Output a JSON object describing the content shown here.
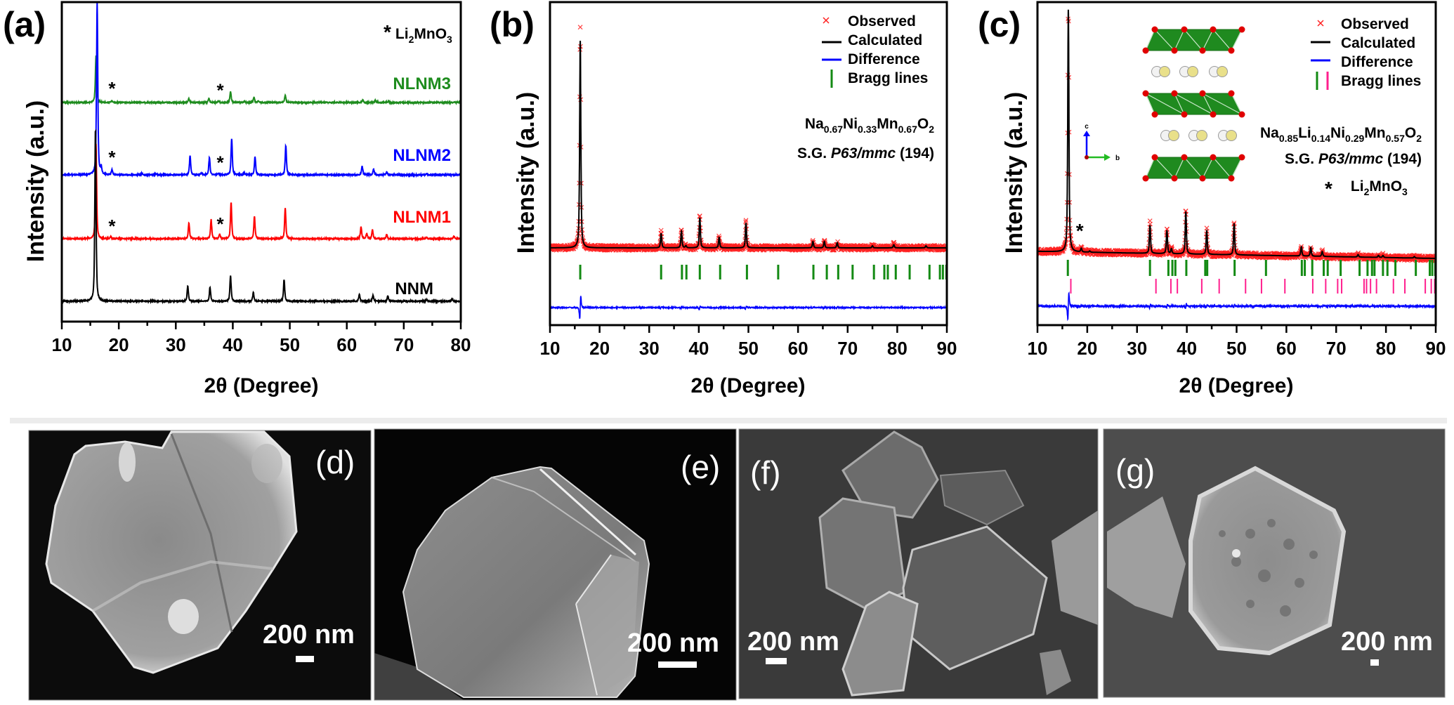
{
  "chart_data": [
    {
      "type": "line",
      "panel_label": "(a)",
      "xlabel": "2θ (Degree)",
      "ylabel": "Intensity (a.u.)",
      "xlim": [
        10,
        80
      ],
      "xticks": [
        10,
        20,
        30,
        40,
        50,
        60,
        70,
        80
      ],
      "grid": false,
      "stacked": true,
      "impurity_legend": {
        "symbol": "*",
        "parts": [
          "Li",
          "2",
          "MnO",
          "3"
        ]
      },
      "series": [
        {
          "name": "NLNM3",
          "color": "#1e8c1e",
          "impurity_peaks": [
            18.8,
            37.8
          ],
          "peaks": [
            [
              16.0,
              27
            ],
            [
              18.8,
              1.2
            ],
            [
              32.3,
              2.4
            ],
            [
              35.8,
              2.4
            ],
            [
              37.5,
              0.8
            ],
            [
              39.6,
              6.5
            ],
            [
              42.0,
              0.8
            ],
            [
              43.7,
              3.2
            ],
            [
              44.5,
              1.0
            ],
            [
              49.2,
              4.5
            ],
            [
              62.8,
              1.6
            ],
            [
              65.0,
              1.2
            ],
            [
              67.3,
              0.8
            ]
          ]
        },
        {
          "name": "NLNM2",
          "color": "#0000ff",
          "impurity_peaks": [
            18.8,
            37.8
          ],
          "peaks": [
            [
              16.2,
              100
            ],
            [
              16.9,
              4
            ],
            [
              18.8,
              3
            ],
            [
              24.0,
              0.8
            ],
            [
              26.5,
              0.5
            ],
            [
              32.5,
              11
            ],
            [
              34.5,
              1.2
            ],
            [
              35.9,
              10
            ],
            [
              37.5,
              0.8
            ],
            [
              39.8,
              21
            ],
            [
              42.0,
              1
            ],
            [
              43.9,
              10.5
            ],
            [
              49.3,
              17
            ],
            [
              62.7,
              5
            ],
            [
              64.7,
              3.2
            ],
            [
              67.0,
              1.6
            ],
            [
              74.0,
              0.6
            ]
          ]
        },
        {
          "name": "NLNM1",
          "color": "#ff0000",
          "impurity_peaks": [
            18.8,
            37.8
          ],
          "peaks": [
            [
              16.0,
              55
            ],
            [
              18.6,
              1.2
            ],
            [
              32.3,
              9
            ],
            [
              36.2,
              11
            ],
            [
              37.7,
              2.5
            ],
            [
              39.7,
              21
            ],
            [
              43.8,
              13
            ],
            [
              49.2,
              18
            ],
            [
              62.5,
              7
            ],
            [
              63.5,
              3
            ],
            [
              64.5,
              5
            ],
            [
              67.0,
              2.5
            ],
            [
              74.0,
              1
            ],
            [
              78.8,
              1.5
            ]
          ]
        },
        {
          "name": "NNM",
          "color": "#000000",
          "impurity_peaks": [],
          "peaks": [
            [
              15.9,
              100
            ],
            [
              32.1,
              9
            ],
            [
              36.0,
              8
            ],
            [
              39.6,
              15
            ],
            [
              43.6,
              5
            ],
            [
              49.0,
              12.5
            ],
            [
              62.2,
              4
            ],
            [
              64.6,
              3.5
            ],
            [
              67.2,
              3
            ],
            [
              74.0,
              1
            ],
            [
              78.5,
              1.5
            ]
          ]
        }
      ]
    },
    {
      "type": "line",
      "panel_label": "(b)",
      "xlabel": "2θ (Degree)",
      "ylabel": "Intensity (a.u.)",
      "xlim": [
        10,
        90
      ],
      "xticks": [
        10,
        20,
        30,
        40,
        50,
        60,
        70,
        80,
        90
      ],
      "grid": false,
      "legend": {
        "position": "top-right",
        "observed": "Observed",
        "calculated": "Calculated",
        "difference": "Difference",
        "bragg": "Bragg lines"
      },
      "colors": {
        "observed": "#ff2020",
        "calculated": "#000000",
        "difference": "#0000ff",
        "bragg": "#138a13"
      },
      "phase": {
        "formula_parts": [
          "Na",
          "0.67",
          "Ni",
          "0.33",
          "Mn",
          "0.67",
          "O",
          "2"
        ],
        "sg_prefix": "S.G. ",
        "sg_name": "P63/mmc",
        "sg_number": " (194)"
      },
      "calculated_peaks": [
        [
          16.1,
          100
        ],
        [
          32.4,
          7
        ],
        [
          36.5,
          8
        ],
        [
          37.4,
          1
        ],
        [
          40.2,
          14.6
        ],
        [
          44.1,
          5
        ],
        [
          49.5,
          12
        ],
        [
          63.0,
          3
        ],
        [
          65.3,
          3
        ],
        [
          67.9,
          2.5
        ],
        [
          75.0,
          1
        ],
        [
          79.3,
          1.5
        ],
        [
          85.8,
          1
        ]
      ],
      "bragg_positions": [
        16.1,
        32.4,
        36.6,
        37.5,
        40.2,
        44.3,
        49.7,
        56.0,
        63.1,
        65.8,
        68.1,
        71.0,
        75.3,
        77.4,
        78.1,
        79.7,
        82.5,
        86.5,
        88.6,
        89.2,
        89.9
      ]
    },
    {
      "type": "line",
      "panel_label": "(c)",
      "xlabel": "2θ (Degree)",
      "ylabel": "Intensity (a.u.)",
      "xlim": [
        10,
        90
      ],
      "xticks": [
        10,
        20,
        30,
        40,
        50,
        60,
        70,
        80,
        90
      ],
      "grid": false,
      "legend": {
        "position": "top-right",
        "observed": "Observed",
        "calculated": "Calculated",
        "difference": "Difference",
        "bragg": "Bragg lines"
      },
      "colors": {
        "observed": "#ff2020",
        "calculated": "#000000",
        "difference": "#0000ff",
        "bragg": "#138a13",
        "bragg_secondary": "#ff1f8e"
      },
      "phase": {
        "formula_parts": [
          "Na",
          "0.85",
          "Li",
          "0.14",
          "Ni",
          "0.29",
          "Mn",
          "0.57",
          "O",
          "2"
        ],
        "sg_prefix": "S.G. ",
        "sg_name": "P63/mmc",
        "sg_number": " (194)"
      },
      "impurity_legend": {
        "symbol": "*",
        "parts": [
          "Li",
          "2",
          "MnO",
          "3"
        ]
      },
      "impurity_peaks": [
        18.5
      ],
      "inset_axes": {
        "c": "c",
        "b": "b"
      },
      "calculated_peaks": [
        [
          16.2,
          100
        ],
        [
          18.8,
          1.5
        ],
        [
          20.5,
          0.5
        ],
        [
          32.6,
          11.6
        ],
        [
          36.0,
          9.6
        ],
        [
          36.9,
          2
        ],
        [
          39.8,
          17.5
        ],
        [
          44.0,
          9.6
        ],
        [
          49.5,
          13
        ],
        [
          63.0,
          3.8
        ],
        [
          64.9,
          3.5
        ],
        [
          67.2,
          2
        ],
        [
          74.4,
          1
        ],
        [
          78.5,
          0.8
        ],
        [
          79.4,
          0.8
        ],
        [
          85.7,
          0.6
        ]
      ],
      "bragg_positions": [
        16.1,
        32.6,
        36.3,
        37.1,
        37.7,
        39.9,
        43.7,
        44.1,
        49.6,
        55.9,
        63.1,
        63.7,
        65.2,
        67.5,
        68.3,
        70.9,
        74.7,
        76.3,
        77.2,
        77.7,
        79.4,
        80.3,
        81.9,
        86.0,
        88.8,
        89.3,
        89.9
      ],
      "bragg_positions_secondary": [
        16.7,
        33.8,
        36.8,
        38.1,
        43.0,
        46.5,
        51.8,
        55.0,
        59.7,
        65.3,
        67.9,
        70.3,
        71.1,
        75.6,
        76.1,
        76.9,
        78.1,
        81.5,
        83.8,
        87.9,
        89.1,
        89.8
      ]
    }
  ],
  "images": [
    {
      "label": "(d)",
      "scale_bar": "200 nm"
    },
    {
      "label": "(e)",
      "scale_bar": "200 nm"
    },
    {
      "label": "(f)",
      "scale_bar": "200 nm"
    },
    {
      "label": "(g)",
      "scale_bar": "200 nm"
    }
  ]
}
